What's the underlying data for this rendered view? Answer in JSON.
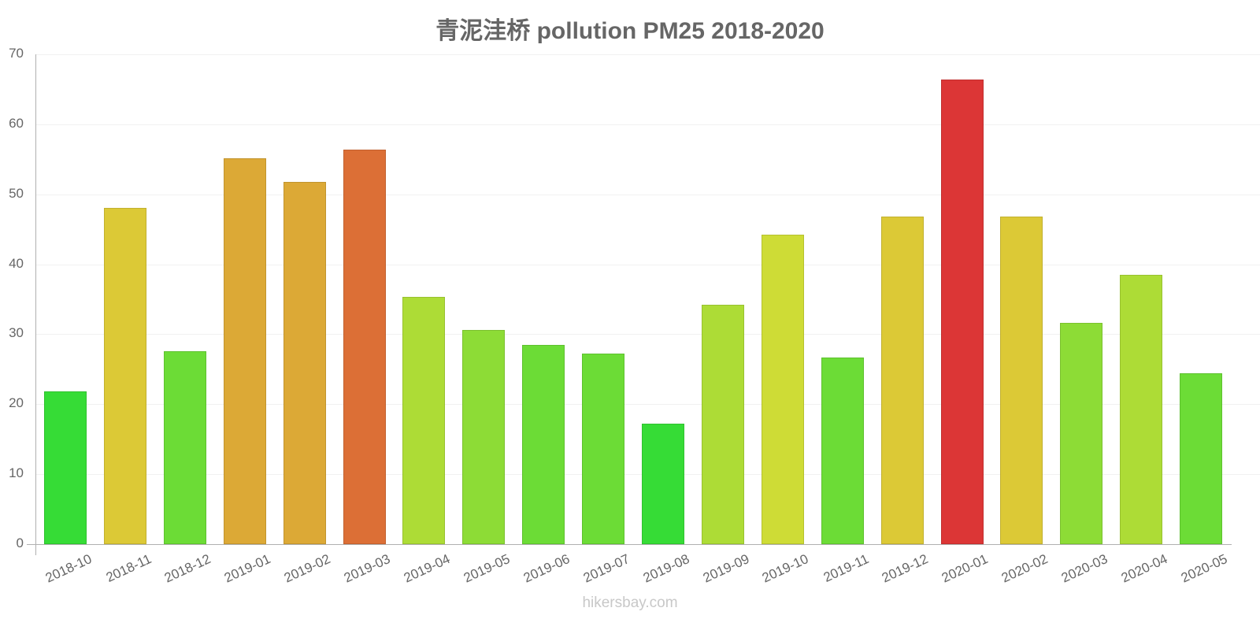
{
  "title": "青泥洼桥 pollution PM25 2018-2020",
  "watermark": "hikersbay.com",
  "y_ticks": [
    "0",
    "10",
    "20",
    "30",
    "40",
    "50",
    "60",
    "70"
  ],
  "chart_data": {
    "type": "bar",
    "title": "青泥洼桥 pollution PM25 2018-2020",
    "xlabel": "",
    "ylabel": "",
    "ylim": [
      0,
      70
    ],
    "grid": true,
    "legend": "none",
    "categories": [
      "2018-10",
      "2018-11",
      "2018-12",
      "2019-01",
      "2019-02",
      "2019-03",
      "2019-04",
      "2019-05",
      "2019-06",
      "2019-07",
      "2019-08",
      "2019-09",
      "2019-10",
      "2019-11",
      "2019-12",
      "2020-01",
      "2020-02",
      "2020-03",
      "2020-04",
      "2020-05"
    ],
    "values": [
      21.8,
      48,
      27.6,
      55.1,
      51.8,
      56.4,
      35.3,
      30.6,
      28.5,
      27.2,
      17.2,
      34.2,
      44.2,
      26.7,
      46.8,
      66.4,
      46.8,
      31.6,
      38.5,
      24.4
    ],
    "colors": [
      "#36dc36",
      "#dcc936",
      "#6cdc36",
      "#dca936",
      "#dca936",
      "#dc6f36",
      "#addc36",
      "#8ddc36",
      "#6cdc36",
      "#6cdc36",
      "#36dc36",
      "#addc36",
      "#cedc36",
      "#6cdc36",
      "#dcc936",
      "#dc3636",
      "#dcc936",
      "#8ddc36",
      "#addc36",
      "#6cdc36"
    ]
  }
}
